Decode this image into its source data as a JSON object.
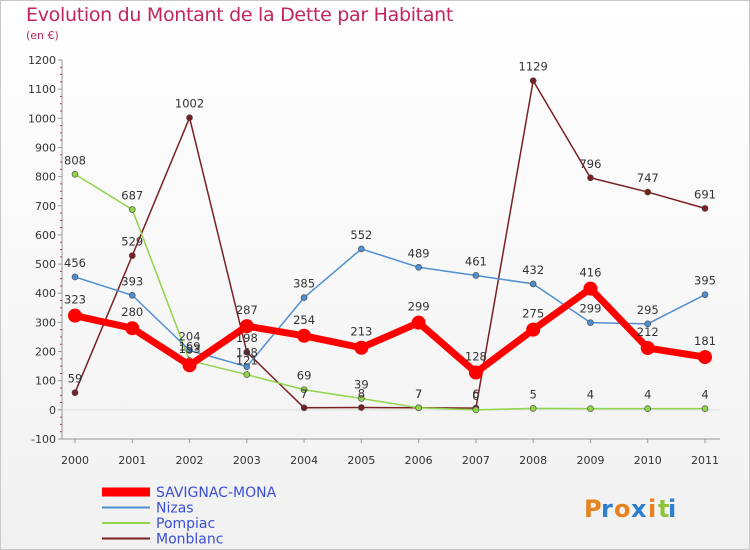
{
  "header": {
    "title": "Evolution du Montant de la Dette par Habitant",
    "subtitle": "(en €)"
  },
  "logo": {
    "text": "Proxiti"
  },
  "chart_data": {
    "type": "line",
    "title": "Evolution du Montant de la Dette par Habitant",
    "subtitle": "(en €)",
    "xlabel": "",
    "ylabel": "",
    "x": [
      "2000",
      "2001",
      "2002",
      "2003",
      "2004",
      "2005",
      "2006",
      "2007",
      "2008",
      "2009",
      "2010",
      "2011"
    ],
    "ylim": [
      -100,
      1200
    ],
    "yticks": [
      "-100",
      "0",
      "100",
      "200",
      "300",
      "400",
      "500",
      "600",
      "700",
      "800",
      "900",
      "1000",
      "1100",
      "1200"
    ],
    "grid": false,
    "legend_position": "bottom-left",
    "series": [
      {
        "name": "SAVIGNAC-MONA",
        "color": "#ff0000",
        "values": [
          323,
          280,
          153,
          287,
          254,
          213,
          299,
          128,
          275,
          416,
          212,
          181
        ],
        "labels": [
          "323",
          "280",
          "153",
          "287",
          "254",
          "213",
          "299",
          "128",
          "275",
          "416",
          "212",
          "181"
        ]
      },
      {
        "name": "Nizas",
        "color": "#4f8fd0",
        "values": [
          456,
          393,
          204,
          148,
          385,
          552,
          489,
          461,
          432,
          299,
          295,
          395
        ],
        "labels": [
          "456",
          "393",
          "204",
          "148",
          "385",
          "552",
          "489",
          "461",
          "432",
          "299",
          "295",
          "395"
        ]
      },
      {
        "name": "Pompiac",
        "color": "#8fd44b",
        "values": [
          808,
          687,
          169,
          121,
          69,
          39,
          7,
          0,
          5,
          4,
          4,
          4
        ],
        "labels": [
          "808",
          "687",
          "169",
          "121",
          "69",
          "39",
          "7",
          "0",
          "5",
          "4",
          "4",
          "4"
        ]
      },
      {
        "name": "Monblanc",
        "color": "#7a2023",
        "values": [
          59,
          529,
          1002,
          198,
          7,
          8,
          7,
          6,
          1129,
          796,
          747,
          691
        ],
        "labels": [
          "59",
          "529",
          "1002",
          "198",
          "7",
          "8",
          "7",
          "6",
          "1129",
          "796",
          "747",
          "691"
        ]
      }
    ]
  }
}
